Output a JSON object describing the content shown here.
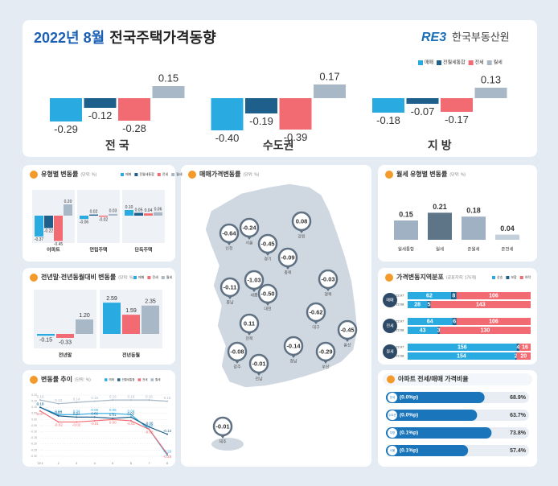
{
  "header": {
    "title_highlight": "2022년 8월",
    "title": "전국주택가격동향",
    "logo": "RE3",
    "org": "한국부동산원"
  },
  "chart_data": [
    {
      "type": "bar",
      "categories": [
        "전 국",
        "수도권",
        "지 방"
      ],
      "series": [
        {
          "name": "매매",
          "color": "#29abe2",
          "values": [
            -0.29,
            -0.4,
            -0.18
          ],
          "value_labels": [
            "-0.29",
            "-0.40",
            "-0.18"
          ]
        },
        {
          "name": "전월세통합",
          "color": "#1f5f8b",
          "values": [
            -0.12,
            -0.19,
            -0.07
          ],
          "value_labels": [
            "-0.12",
            "-0.19",
            "-0.07"
          ]
        },
        {
          "name": "전세",
          "color": "#f26b72",
          "values": [
            -0.28,
            -0.39,
            -0.17
          ],
          "value_labels": [
            "-0.28",
            "-0.39",
            "-0.17"
          ]
        },
        {
          "name": "월세",
          "color": "#a9b8c6",
          "values": [
            0.15,
            0.17,
            0.13
          ],
          "value_labels": [
            "0.15",
            "0.17",
            "0.13"
          ]
        }
      ]
    },
    {
      "type": "bar",
      "title": "유형별 변동률",
      "unit": "(단위: %)",
      "categories": [
        "아파트",
        "연립주택",
        "단독주택"
      ],
      "series": [
        {
          "name": "매매",
          "color": "#29abe2",
          "values": [
            -0.37,
            -0.06,
            0.1
          ],
          "value_labels": [
            "-0.37",
            "-0.06",
            "0.10"
          ]
        },
        {
          "name": "전월세통합",
          "color": "#1f5f8b",
          "values": [
            -0.22,
            0.02,
            0.05
          ],
          "value_labels": [
            "-0.22",
            "0.02",
            "0.05"
          ]
        },
        {
          "name": "전세",
          "color": "#f26b72",
          "values": [
            -0.45,
            -0.02,
            0.04
          ],
          "value_labels": [
            "-0.45",
            "-0.02",
            "0.04"
          ]
        },
        {
          "name": "월세",
          "color": "#a9b8c6",
          "values": [
            0.2,
            0.03,
            0.06
          ],
          "value_labels": [
            "0.20",
            "0.03",
            "0.06"
          ]
        }
      ]
    },
    {
      "type": "bar",
      "title": "전년말·전년동월대비 변동률",
      "unit": "(단위: %)",
      "categories": [
        "전년말",
        "전년동월"
      ],
      "series": [
        {
          "name": "매매",
          "color": "#29abe2",
          "values": [
            -0.15,
            2.59
          ],
          "value_labels": [
            "-0.15",
            "2.59"
          ]
        },
        {
          "name": "전세",
          "color": "#f26b72",
          "values": [
            -0.33,
            1.59
          ],
          "value_labels": [
            "-0.33",
            "1.59"
          ]
        },
        {
          "name": "월세",
          "color": "#a9b8c6",
          "values": [
            1.2,
            2.35
          ],
          "value_labels": [
            "1.20",
            "2.35"
          ]
        }
      ]
    },
    {
      "type": "line",
      "title": "변동률 추이",
      "unit": "(단위: %)",
      "categories": [
        "'22.1",
        "2",
        "3",
        "4",
        "5",
        "6",
        "7",
        "8"
      ],
      "ylim": [
        -0.32,
        0.22
      ],
      "yticks": [
        {
          "value": 0.2,
          "label": "0.20"
        },
        0.15,
        {
          "value": 0.1,
          "label": "0.10"
        },
        0.05,
        {
          "value": 0,
          "label": "0.00"
        },
        -0.05,
        {
          "value": -0.1,
          "label": "-0.10"
        },
        -0.15,
        {
          "value": -0.2,
          "label": "-0.20"
        },
        -0.25,
        {
          "value": -0.3,
          "label": "-0.30"
        }
      ],
      "grid": true,
      "series": [
        {
          "name": "매매",
          "color": "#29abe2",
          "values": [
            0.1,
            0.04,
            0.04,
            0.05,
            0.05,
            0.04,
            -0.08,
            -0.29
          ],
          "value_labels": [
            "0.10",
            "0.04",
            "0.04",
            "0.05",
            "0.05",
            "0.04",
            "-0.08",
            "-0.29"
          ]
        },
        {
          "name": "전월세통합",
          "color": "#1f5f8b",
          "values": [
            0.1,
            0.03,
            0.02,
            0.02,
            0.01,
            0.02,
            -0.06,
            -0.12
          ],
          "value_labels": [
            "0.10",
            "0.03",
            "0.02",
            "0.02",
            "0.01",
            "0.02",
            "-0.06",
            "-0.12"
          ]
        },
        {
          "name": "전세",
          "color": "#f26b72",
          "values": [
            0.07,
            -0.02,
            -0.02,
            -0.01,
            0.0,
            -0.01,
            -0.08,
            -0.28
          ],
          "value_labels": [
            "0.07",
            "-0.02",
            "-0.02",
            "-0.01",
            "0.00",
            "-0.01",
            "-0.08",
            "-0.28"
          ]
        },
        {
          "name": "월세",
          "color": "#a9b8c6",
          "values": [
            0.16,
            0.13,
            0.14,
            0.15,
            0.16,
            0.16,
            0.16,
            0.15
          ],
          "value_labels": [
            "0.16",
            "0.13",
            "0.14",
            "0.15",
            "0.16",
            "0.16",
            "0.16",
            "0.15"
          ]
        }
      ]
    },
    {
      "type": "bar",
      "title": "월세 유형별 변동률",
      "unit": "(단위: %)",
      "categories": [
        "월세통합",
        "월세",
        "준월세",
        "준전세"
      ],
      "values": [
        0.15,
        0.21,
        0.18,
        0.04
      ],
      "value_labels": [
        "0.15",
        "0.21",
        "0.18",
        "0.04"
      ],
      "colors": [
        "#9fb1c3",
        "#5d7587",
        "#9fb1c3",
        "#c3cfdb"
      ]
    },
    {
      "type": "stacked-barh",
      "title": "가격변동지역분포",
      "subtitle": "(공표지역: 176개)",
      "groups": [
        "매매",
        "전세",
        "월세"
      ],
      "categories": [
        "'22.07",
        "'22.08",
        "'22.07",
        "'22.08",
        "'22.07",
        "'22.08"
      ],
      "xlim": [
        0,
        176
      ],
      "series": [
        {
          "name": "상승",
          "color": "#29abe2",
          "values": [
            62,
            28,
            64,
            43,
            156,
            154
          ]
        },
        {
          "name": "보합",
          "color": "#1f5f8b",
          "values": [
            8,
            5,
            6,
            3,
            4,
            2
          ]
        },
        {
          "name": "하락",
          "color": "#f26b72",
          "values": [
            106,
            143,
            106,
            130,
            16,
            20
          ]
        }
      ]
    },
    {
      "type": "barh",
      "title": "아파트 전세/매매 가격비율",
      "categories": [
        "전국",
        "수도권",
        "지방",
        "서울"
      ],
      "changes": [
        "(0.0%p)",
        "(0.0%p)",
        "(0.1%p)",
        "(0.1%p)"
      ],
      "values": [
        68.9,
        63.7,
        73.8,
        57.4
      ],
      "value_labels": [
        "68.9%",
        "63.7%",
        "73.8%",
        "57.4%"
      ],
      "xlim": [
        0,
        100
      ],
      "color": "#1b75bb"
    }
  ],
  "map": {
    "title": "매매가격변동률",
    "unit": "(단위: %)",
    "regions": [
      "인천",
      "서울",
      "강원",
      "경기",
      "충북",
      "충남",
      "세종",
      "대전",
      "경북",
      "전북",
      "대구",
      "울산",
      "광주",
      "전남",
      "경남",
      "부산",
      "제주"
    ],
    "values": [
      -0.64,
      -0.24,
      0.08,
      -0.45,
      -0.09,
      -0.11,
      -1.03,
      -0.5,
      -0.03,
      0.11,
      -0.62,
      -0.45,
      -0.08,
      -0.01,
      -0.14,
      -0.29,
      -0.01
    ],
    "value_labels": [
      "-0.64",
      "-0.24",
      "0.08",
      "-0.45",
      "-0.09",
      "-0.11",
      "-1.03",
      "-0.50",
      "-0.03",
      "0.11",
      "-0.62",
      "-0.45",
      "-0.08",
      "-0.01",
      "-0.14",
      "-0.29",
      "-0.01"
    ]
  }
}
